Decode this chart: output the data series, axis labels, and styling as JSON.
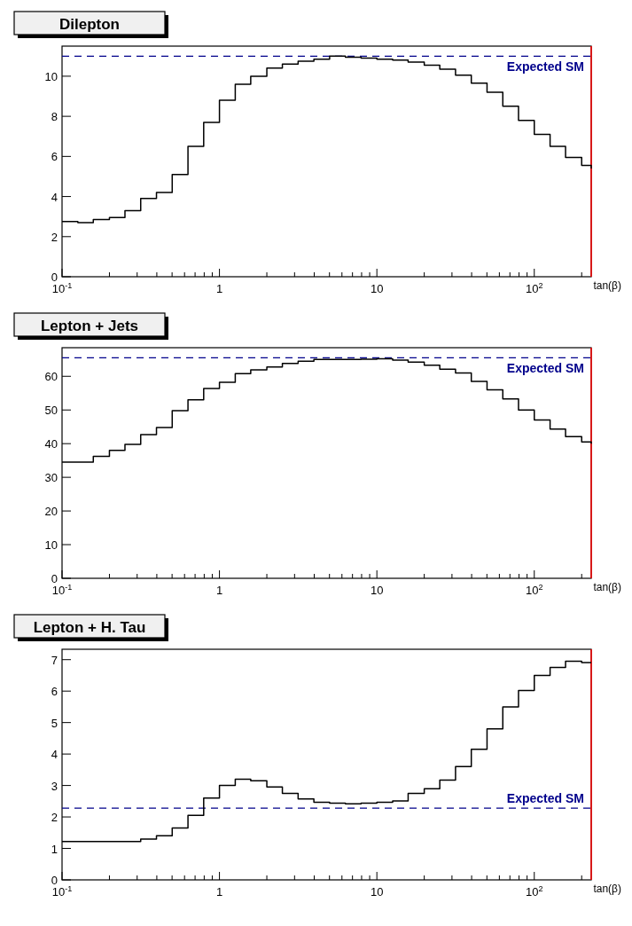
{
  "chart_data": [
    {
      "type": "step",
      "title": "Dilepton",
      "xlabel": "tan(β)",
      "log": "x",
      "color": "#000000",
      "x": [
        0.1,
        0.126,
        0.158,
        0.2,
        0.251,
        0.316,
        0.398,
        0.501,
        0.631,
        0.794,
        1,
        1.26,
        1.58,
        2,
        2.51,
        3.16,
        3.98,
        5.01,
        6.31,
        7.94,
        10,
        12.6,
        15.8,
        20,
        25.1,
        31.6,
        39.8,
        50.1,
        63.1,
        79.4,
        100,
        126,
        158,
        200,
        230
      ],
      "values": [
        2.75,
        2.7,
        2.85,
        2.95,
        3.3,
        3.9,
        4.2,
        5.1,
        6.5,
        7.7,
        8.8,
        9.6,
        10.0,
        10.4,
        10.6,
        10.75,
        10.85,
        11.0,
        10.95,
        10.9,
        10.85,
        10.8,
        10.7,
        10.55,
        10.35,
        10.05,
        9.65,
        9.2,
        8.5,
        7.8,
        7.1,
        6.5,
        5.95,
        5.55,
        5.4
      ],
      "xlim": [
        0.1,
        230
      ],
      "xticks": [
        {
          "value": 0.1,
          "label": "10$^{-1}$"
        },
        {
          "value": 0.2,
          "label": null
        },
        {
          "value": 0.3,
          "label": null
        },
        {
          "value": 0.4,
          "label": null
        },
        {
          "value": 0.5,
          "label": null
        },
        {
          "value": 0.6,
          "label": null
        },
        {
          "value": 0.7,
          "label": null
        },
        {
          "value": 0.8,
          "label": null
        },
        {
          "value": 0.9,
          "label": null
        },
        {
          "value": 1,
          "label": "1"
        },
        {
          "value": 2,
          "label": null
        },
        {
          "value": 3,
          "label": null
        },
        {
          "value": 4,
          "label": null
        },
        {
          "value": 5,
          "label": null
        },
        {
          "value": 6,
          "label": null
        },
        {
          "value": 7,
          "label": null
        },
        {
          "value": 8,
          "label": null
        },
        {
          "value": 9,
          "label": null
        },
        {
          "value": 10,
          "label": "10"
        },
        {
          "value": 20,
          "label": null
        },
        {
          "value": 30,
          "label": null
        },
        {
          "value": 40,
          "label": null
        },
        {
          "value": 50,
          "label": null
        },
        {
          "value": 60,
          "label": null
        },
        {
          "value": 70,
          "label": null
        },
        {
          "value": 80,
          "label": null
        },
        {
          "value": 90,
          "label": null
        },
        {
          "value": 100,
          "label": "10$^{2}$"
        },
        {
          "value": 200,
          "label": null
        }
      ],
      "ylim": [
        0,
        11.5
      ],
      "yticks": [
        0,
        2,
        4,
        6,
        8,
        10
      ],
      "ref_lines": [
        {
          "axis": "y",
          "value": 11,
          "label": "Expected SM",
          "color": "#00008b",
          "line_style": "dashed"
        },
        {
          "axis": "x",
          "value": 230,
          "color": "#ff0000"
        }
      ]
    },
    {
      "type": "step",
      "title": "Lepton + Jets",
      "xlabel": "tan(β)",
      "log": "x",
      "color": "#000000",
      "x": [
        0.1,
        0.126,
        0.158,
        0.2,
        0.251,
        0.316,
        0.398,
        0.501,
        0.631,
        0.794,
        1,
        1.26,
        1.58,
        2,
        2.51,
        3.16,
        3.98,
        5.01,
        6.31,
        7.94,
        10,
        12.6,
        15.8,
        20,
        25.1,
        31.6,
        39.8,
        50.1,
        63.1,
        79.4,
        100,
        126,
        158,
        200,
        230
      ],
      "values": [
        34.5,
        34.5,
        36.2,
        38,
        39.8,
        42.7,
        44.8,
        49.8,
        53,
        56.4,
        58.2,
        60.8,
        61.9,
        62.8,
        63.8,
        64.5,
        65,
        65,
        65,
        65.1,
        65.2,
        64.8,
        64.2,
        63.3,
        62.1,
        61,
        58.5,
        56,
        53.3,
        50,
        47,
        44.3,
        42.1,
        40.5,
        40
      ],
      "xlim": [
        0.1,
        230
      ],
      "xticks": [
        {
          "value": 0.1,
          "label": "10$^{-1}$"
        },
        {
          "value": 0.2,
          "label": null
        },
        {
          "value": 0.3,
          "label": null
        },
        {
          "value": 0.4,
          "label": null
        },
        {
          "value": 0.5,
          "label": null
        },
        {
          "value": 0.6,
          "label": null
        },
        {
          "value": 0.7,
          "label": null
        },
        {
          "value": 0.8,
          "label": null
        },
        {
          "value": 0.9,
          "label": null
        },
        {
          "value": 1,
          "label": "1"
        },
        {
          "value": 2,
          "label": null
        },
        {
          "value": 3,
          "label": null
        },
        {
          "value": 4,
          "label": null
        },
        {
          "value": 5,
          "label": null
        },
        {
          "value": 6,
          "label": null
        },
        {
          "value": 7,
          "label": null
        },
        {
          "value": 8,
          "label": null
        },
        {
          "value": 9,
          "label": null
        },
        {
          "value": 10,
          "label": "10"
        },
        {
          "value": 20,
          "label": null
        },
        {
          "value": 30,
          "label": null
        },
        {
          "value": 40,
          "label": null
        },
        {
          "value": 50,
          "label": null
        },
        {
          "value": 60,
          "label": null
        },
        {
          "value": 70,
          "label": null
        },
        {
          "value": 80,
          "label": null
        },
        {
          "value": 90,
          "label": null
        },
        {
          "value": 100,
          "label": "10$^{2}$"
        },
        {
          "value": 200,
          "label": null
        }
      ],
      "ylim": [
        0,
        68.5
      ],
      "yticks": [
        0,
        10,
        20,
        30,
        40,
        50,
        60
      ],
      "ref_lines": [
        {
          "axis": "y",
          "value": 65.5,
          "label": "Expected SM",
          "color": "#00008b",
          "line_style": "dashed"
        },
        {
          "axis": "x",
          "value": 230,
          "color": "#ff0000"
        }
      ]
    },
    {
      "type": "step",
      "title": "Lepton + H. Tau",
      "xlabel": "tan(β)",
      "log": "x",
      "color": "#000000",
      "x": [
        0.1,
        0.126,
        0.158,
        0.2,
        0.251,
        0.316,
        0.398,
        0.501,
        0.631,
        0.794,
        1,
        1.26,
        1.58,
        2,
        2.51,
        3.16,
        3.98,
        5.01,
        6.31,
        7.94,
        10,
        12.6,
        15.8,
        20,
        25.1,
        31.6,
        39.8,
        50.1,
        63.1,
        79.4,
        100,
        126,
        158,
        200,
        230
      ],
      "values": [
        1.22,
        1.22,
        1.22,
        1.22,
        1.22,
        1.3,
        1.4,
        1.65,
        2.05,
        2.6,
        3.0,
        3.2,
        3.15,
        2.95,
        2.75,
        2.57,
        2.47,
        2.44,
        2.42,
        2.44,
        2.47,
        2.51,
        2.75,
        2.9,
        3.17,
        3.6,
        4.15,
        4.8,
        5.5,
        6.02,
        6.5,
        6.75,
        6.95,
        6.91,
        6.91
      ],
      "xlim": [
        0.1,
        230
      ],
      "xticks": [
        {
          "value": 0.1,
          "label": "10$^{-1}$"
        },
        {
          "value": 0.2,
          "label": null
        },
        {
          "value": 0.3,
          "label": null
        },
        {
          "value": 0.4,
          "label": null
        },
        {
          "value": 0.5,
          "label": null
        },
        {
          "value": 0.6,
          "label": null
        },
        {
          "value": 0.7,
          "label": null
        },
        {
          "value": 0.8,
          "label": null
        },
        {
          "value": 0.9,
          "label": null
        },
        {
          "value": 1,
          "label": "1"
        },
        {
          "value": 2,
          "label": null
        },
        {
          "value": 3,
          "label": null
        },
        {
          "value": 4,
          "label": null
        },
        {
          "value": 5,
          "label": null
        },
        {
          "value": 6,
          "label": null
        },
        {
          "value": 7,
          "label": null
        },
        {
          "value": 8,
          "label": null
        },
        {
          "value": 9,
          "label": null
        },
        {
          "value": 10,
          "label": "10"
        },
        {
          "value": 20,
          "label": null
        },
        {
          "value": 30,
          "label": null
        },
        {
          "value": 40,
          "label": null
        },
        {
          "value": 50,
          "label": null
        },
        {
          "value": 60,
          "label": null
        },
        {
          "value": 70,
          "label": null
        },
        {
          "value": 80,
          "label": null
        },
        {
          "value": 90,
          "label": null
        },
        {
          "value": 100,
          "label": "10$^{2}$"
        },
        {
          "value": 200,
          "label": null
        }
      ],
      "ylim": [
        0,
        7.33
      ],
      "yticks": [
        0,
        1,
        2,
        3,
        4,
        5,
        6,
        7
      ],
      "ref_lines": [
        {
          "axis": "y",
          "value": 2.28,
          "label": "Expected SM",
          "color": "#00008b",
          "line_style": "dashed"
        },
        {
          "axis": "x",
          "value": 230,
          "color": "#ff0000"
        }
      ]
    }
  ]
}
